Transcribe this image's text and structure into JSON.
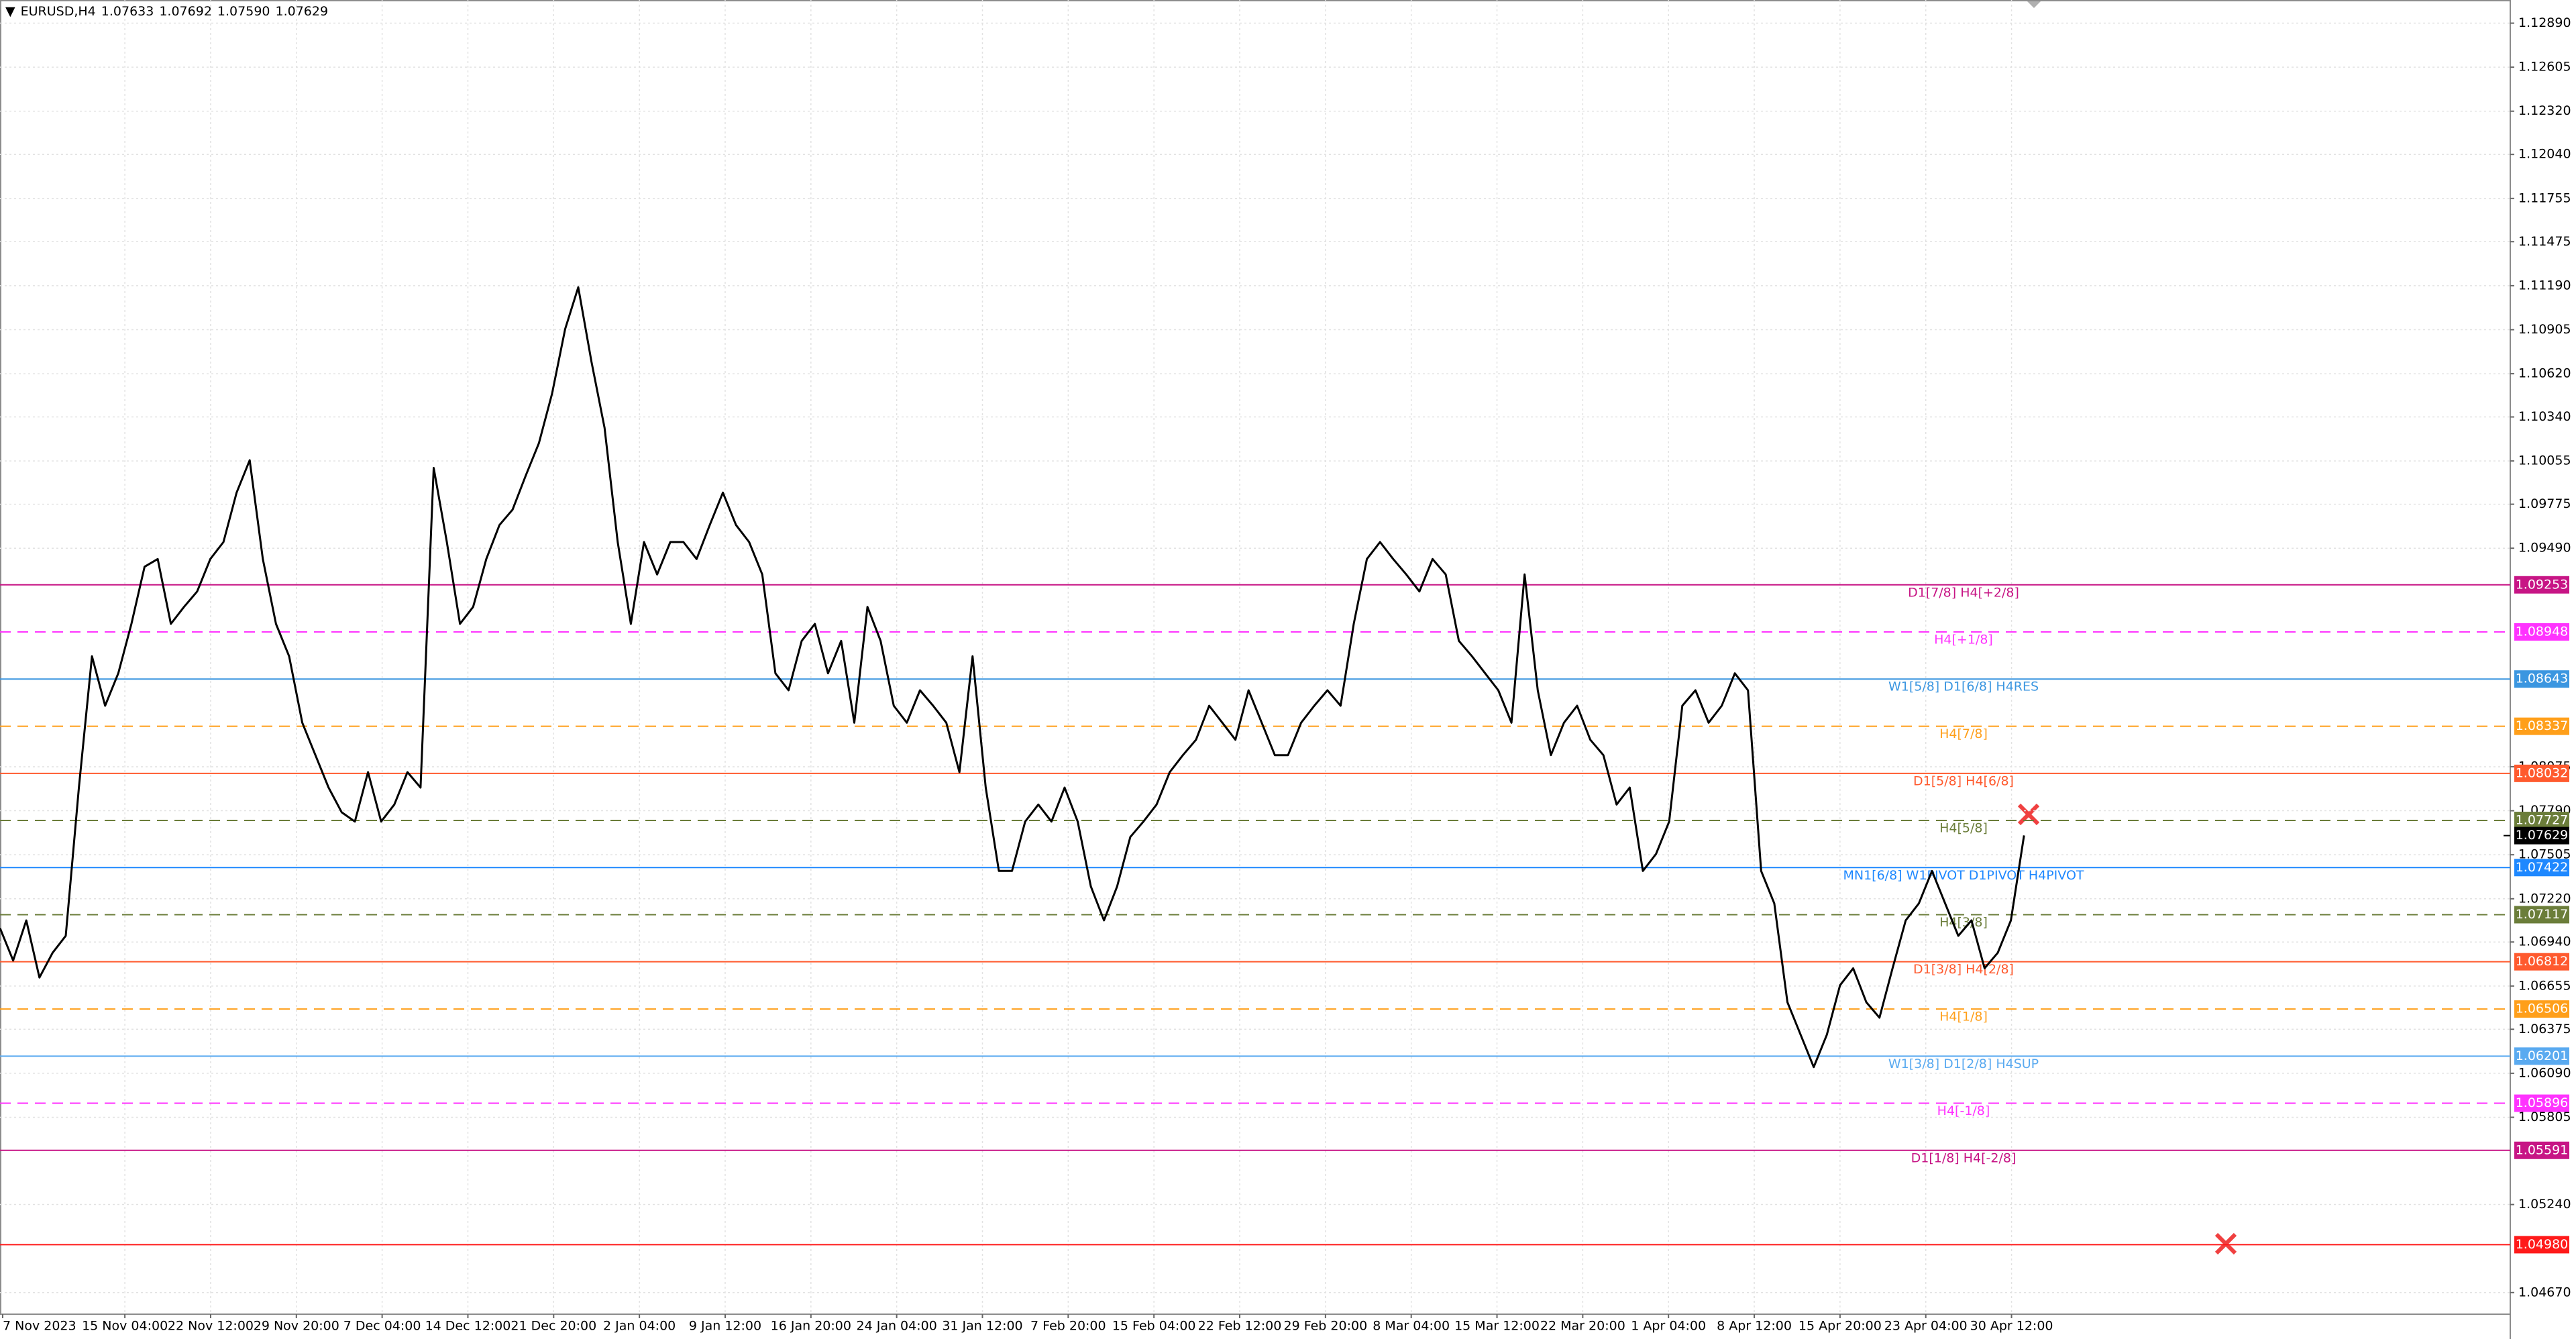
{
  "chart_data": {
    "type": "line",
    "header": {
      "symbol": "EURUSD,H4",
      "values": [
        1.07633,
        1.07692,
        1.0759,
        1.07629
      ],
      "value_labels": [
        "1.07633",
        "1.07692",
        "1.07590",
        "1.07629"
      ]
    },
    "xlabels": [
      "7 Nov 2023",
      "15 Nov 04:00",
      "22 Nov 12:00",
      "29 Nov 20:00",
      "7 Dec 04:00",
      "14 Dec 12:00",
      "21 Dec 20:00",
      "2 Jan 04:00",
      "9 Jan 12:00",
      "16 Jan 20:00",
      "24 Jan 04:00",
      "31 Jan 12:00",
      "7 Feb 20:00",
      "15 Feb 04:00",
      "22 Feb 12:00",
      "29 Feb 20:00",
      "8 Mar 04:00",
      "15 Mar 12:00",
      "22 Mar 20:00",
      "1 Apr 04:00",
      "8 Apr 12:00",
      "15 Apr 20:00",
      "23 Apr 04:00",
      "30 Apr 12:00"
    ],
    "series": [
      {
        "name": "EURUSD",
        "color": "#000000",
        "values": [
          1.0703,
          1.0682,
          1.0708,
          1.0671,
          1.0687,
          1.0698,
          1.0794,
          1.0879,
          1.0847,
          1.0868,
          1.09,
          1.0937,
          1.0942,
          1.09,
          1.0911,
          1.0921,
          1.0942,
          1.0953,
          1.0985,
          1.1006,
          1.0942,
          1.09,
          1.0879,
          1.0836,
          1.0815,
          1.0794,
          1.0778,
          1.0772,
          1.0804,
          1.0772,
          1.0783,
          1.0804,
          1.0794,
          1.1001,
          1.0953,
          1.09,
          1.0911,
          1.0942,
          1.0964,
          1.0974,
          1.0996,
          1.1017,
          1.1049,
          1.1091,
          1.1118,
          1.107,
          1.1027,
          1.0953,
          1.09,
          1.0953,
          1.0932,
          1.0953,
          1.0953,
          1.0942,
          1.0964,
          1.0985,
          1.0964,
          1.0953,
          1.0932,
          1.0868,
          1.0857,
          1.0889,
          1.09,
          1.0868,
          1.0889,
          1.0836,
          1.0911,
          1.0889,
          1.0847,
          1.0836,
          1.0857,
          1.0847,
          1.0836,
          1.0804,
          1.0879,
          1.0794,
          1.074,
          1.074,
          1.0772,
          1.0783,
          1.0772,
          1.0794,
          1.0772,
          1.073,
          1.0708,
          1.073,
          1.0762,
          1.0772,
          1.0783,
          1.0804,
          1.0815,
          1.0825,
          1.0847,
          1.0836,
          1.0825,
          1.0857,
          1.0836,
          1.0815,
          1.0815,
          1.0836,
          1.0847,
          1.0857,
          1.0847,
          1.09,
          1.0942,
          1.0953,
          1.0942,
          1.0932,
          1.0921,
          1.0942,
          1.0932,
          1.0889,
          1.0879,
          1.0868,
          1.0857,
          1.0836,
          1.0932,
          1.0857,
          1.0815,
          1.0836,
          1.0847,
          1.0825,
          1.0815,
          1.0783,
          1.0794,
          1.074,
          1.0751,
          1.0772,
          1.0847,
          1.0857,
          1.0836,
          1.0847,
          1.0868,
          1.0857,
          1.074,
          1.0719,
          1.0655,
          1.0634,
          1.0613,
          1.0634,
          1.0666,
          1.0677,
          1.0655,
          1.0645,
          1.0677,
          1.0708,
          1.0719,
          1.074,
          1.0719,
          1.0698,
          1.0708,
          1.0677,
          1.0687,
          1.0708,
          1.0763
        ]
      }
    ],
    "ylim": [
      1.0453,
      1.1304
    ],
    "yticks": [
      {
        "value": 1.1289,
        "label": "1.12890"
      },
      {
        "value": 1.12605,
        "label": "1.12605"
      },
      {
        "value": 1.1232,
        "label": "1.12320"
      },
      {
        "value": 1.1204,
        "label": "1.12040"
      },
      {
        "value": 1.11755,
        "label": "1.11755"
      },
      {
        "value": 1.11475,
        "label": "1.11475"
      },
      {
        "value": 1.1119,
        "label": "1.11190"
      },
      {
        "value": 1.10905,
        "label": "1.10905"
      },
      {
        "value": 1.1062,
        "label": "1.10620"
      },
      {
        "value": 1.1034,
        "label": "1.10340"
      },
      {
        "value": 1.10055,
        "label": "1.10055"
      },
      {
        "value": 1.09775,
        "label": "1.09775"
      },
      {
        "value": 1.0949,
        "label": "1.09490"
      },
      {
        "value": 1.08075,
        "label": "1.08075"
      },
      {
        "value": 1.0779,
        "label": "1.07790"
      },
      {
        "value": 1.07505,
        "label": "1.07505"
      },
      {
        "value": 1.0722,
        "label": "1.07220"
      },
      {
        "value": 1.0694,
        "label": "1.06940"
      },
      {
        "value": 1.06655,
        "label": "1.06655"
      },
      {
        "value": 1.06375,
        "label": "1.06375"
      },
      {
        "value": 1.0609,
        "label": "1.06090"
      },
      {
        "value": 1.05805,
        "label": "1.05805"
      },
      {
        "value": 1.0524,
        "label": "1.05240"
      },
      {
        "value": 1.0467,
        "label": "1.04670"
      }
    ],
    "grid": true,
    "levels": {
      "values": [
        1.09253,
        1.08948,
        1.08643,
        1.08337,
        1.08032,
        1.07727,
        1.07422,
        1.07117,
        1.06812,
        1.06506,
        1.06201,
        1.05896,
        1.05591,
        1.0498
      ],
      "value_labels": [
        "1.09253",
        "1.08948",
        "1.08643",
        "1.08337",
        "1.08032",
        "1.07727",
        "1.07422",
        "1.07117",
        "1.06812",
        "1.06506",
        "1.06201",
        "1.05896",
        "1.05591",
        "1.04980"
      ],
      "labels": [
        "D1[7/8] H4[+2/8]",
        "H4[+1/8]",
        "W1[5/8] D1[6/8] H4RES",
        "H4[7/8]",
        "D1[5/8] H4[6/8]",
        "H4[5/8]",
        "MN1[6/8] W1PIVOT D1PIVOT H4PIVOT",
        "H4[3/8]",
        "D1[3/8] H4[2/8]",
        "H4[1/8]",
        "W1[3/8] D1[2/8] H4SUP",
        "H4[-1/8]",
        "D1[1/8] H4[-2/8]",
        null
      ],
      "colors": [
        "#c71585",
        "#ff33ff",
        "#3b96e0",
        "#ff9f1a",
        "#ff5a2e",
        "#6b7d3a",
        "#1e88ff",
        "#6b7d3a",
        "#ff5a2e",
        "#ff9f1a",
        "#5aaaf0",
        "#ff33ff",
        "#c71585",
        "#ff1a1a"
      ],
      "dashed": [
        false,
        true,
        false,
        true,
        false,
        true,
        false,
        true,
        false,
        true,
        false,
        true,
        false,
        false
      ]
    },
    "last_price": 1.07629,
    "last_price_label": "1.07629"
  }
}
